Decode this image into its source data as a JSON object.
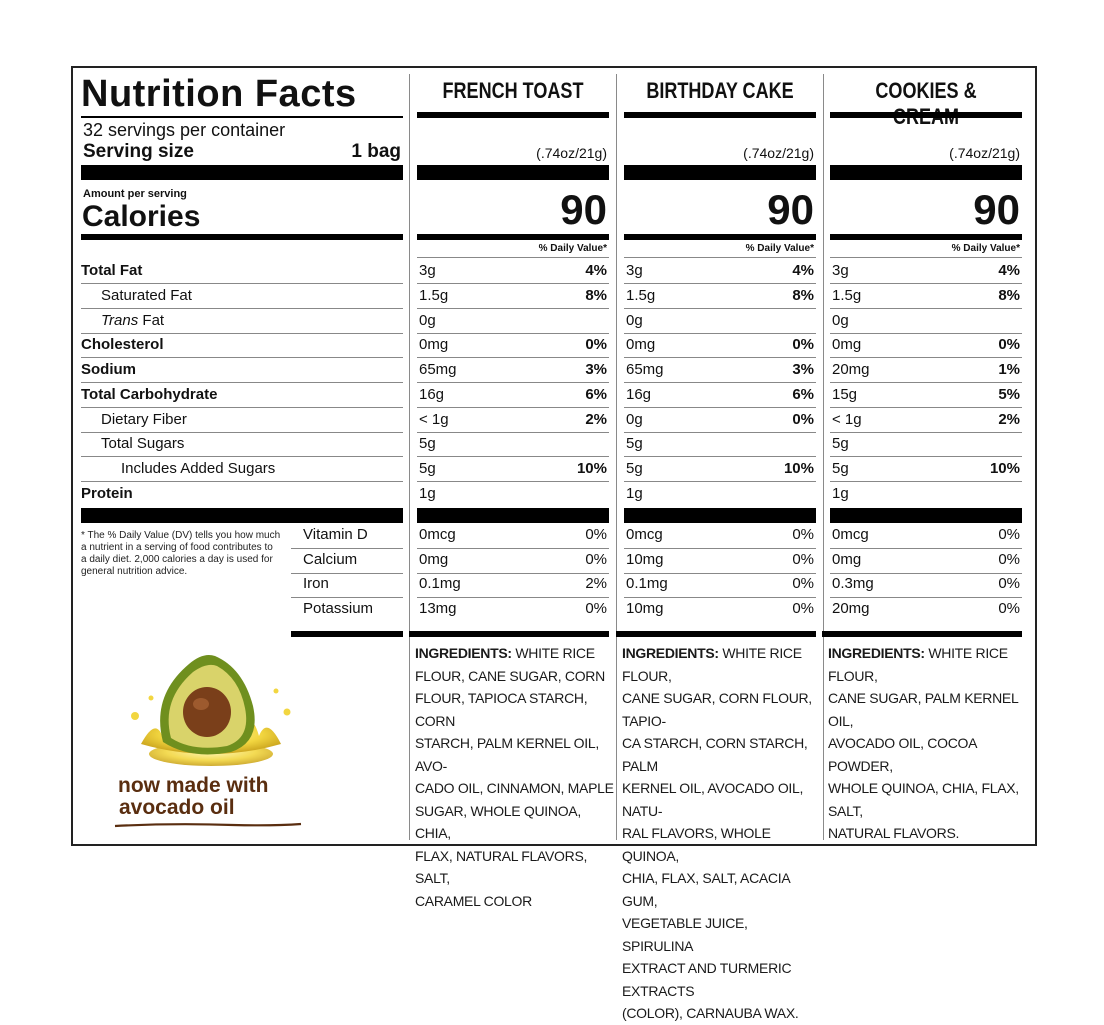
{
  "panel": {
    "title": "Nutrition Facts",
    "servings_per_container": "32 servings per container",
    "serving_size_label": "Serving size",
    "serving_size_value": "1 bag",
    "amount_per_serving": "Amount per serving",
    "calories_label": "Calories",
    "daily_value_header": "% Daily Value*",
    "nutrients": [
      {
        "label": "Total Fat",
        "bold": true
      },
      {
        "label": "Saturated Fat",
        "bold": false
      },
      {
        "label": "Trans",
        "suffix": " Fat",
        "bold": false
      },
      {
        "label": "Cholesterol",
        "bold": true
      },
      {
        "label": "Sodium",
        "bold": true
      },
      {
        "label": "Total Carbohydrate",
        "bold": true
      },
      {
        "label": "Dietary Fiber",
        "bold": false
      },
      {
        "label": "Total Sugars",
        "bold": false
      },
      {
        "label": "Includes Added Sugars",
        "bold": false
      },
      {
        "label": "Protein",
        "bold": true
      }
    ],
    "vitamins": [
      "Vitamin D",
      "Calcium",
      "Iron",
      "Potassium"
    ],
    "footnote": "* The % Daily Value (DV) tells you how much a nutrient in a serving of food contributes to a daily diet. 2,000 calories a day is used for general nutrition advice.",
    "tagline_line1": "now made with",
    "tagline_line2": "avocado oil"
  },
  "flavors": [
    {
      "name": "FRENCH TOAST",
      "serving_weight": "(.74oz/21g)",
      "calories": "90",
      "nutrients": [
        {
          "amount": "3g",
          "dv": "4%"
        },
        {
          "amount": "1.5g",
          "dv": "8%"
        },
        {
          "amount": "0g",
          "dv": ""
        },
        {
          "amount": "0mg",
          "dv": "0%"
        },
        {
          "amount": "65mg",
          "dv": "3%"
        },
        {
          "amount": "16g",
          "dv": "6%"
        },
        {
          "amount": "< 1g",
          "dv": "2%"
        },
        {
          "amount": "5g",
          "dv": ""
        },
        {
          "amount": "5g",
          "dv": "10%"
        },
        {
          "amount": "1g",
          "dv": ""
        }
      ],
      "vitamins": [
        {
          "amount": "0mcg",
          "dv": "0%"
        },
        {
          "amount": "0mg",
          "dv": "0%"
        },
        {
          "amount": "0.1mg",
          "dv": "2%"
        },
        {
          "amount": "13mg",
          "dv": "0%"
        }
      ],
      "ingredients_label": "INGREDIENTS:",
      "ingredients_lines": [
        " WHITE RICE",
        "FLOUR, CANE SUGAR, CORN",
        "FLOUR, TAPIOCA STARCH, CORN",
        "STARCH, PALM KERNEL OIL, AVO-",
        "CADO OIL, CINNAMON, MAPLE",
        "SUGAR, WHOLE QUINOA, CHIA,",
        "FLAX, NATURAL FLAVORS, SALT,",
        "CARAMEL COLOR"
      ]
    },
    {
      "name": "BIRTHDAY CAKE",
      "serving_weight": "(.74oz/21g)",
      "calories": "90",
      "nutrients": [
        {
          "amount": "3g",
          "dv": "4%"
        },
        {
          "amount": "1.5g",
          "dv": "8%"
        },
        {
          "amount": "0g",
          "dv": ""
        },
        {
          "amount": "0mg",
          "dv": "0%"
        },
        {
          "amount": "65mg",
          "dv": "3%"
        },
        {
          "amount": "16g",
          "dv": "6%"
        },
        {
          "amount": "0g",
          "dv": "0%"
        },
        {
          "amount": "5g",
          "dv": ""
        },
        {
          "amount": "5g",
          "dv": "10%"
        },
        {
          "amount": "1g",
          "dv": ""
        }
      ],
      "vitamins": [
        {
          "amount": "0mcg",
          "dv": "0%"
        },
        {
          "amount": "10mg",
          "dv": "0%"
        },
        {
          "amount": "0.1mg",
          "dv": "0%"
        },
        {
          "amount": "10mg",
          "dv": "0%"
        }
      ],
      "ingredients_label": "INGREDIENTS:",
      "ingredients_lines": [
        " WHITE RICE FLOUR,",
        "CANE SUGAR, CORN FLOUR, TAPIO-",
        "CA STARCH, CORN STARCH, PALM",
        "KERNEL OIL, AVOCADO OIL, NATU-",
        "RAL FLAVORS, WHOLE QUINOA,",
        "CHIA, FLAX, SALT, ACACIA GUM,",
        "VEGETABLE JUICE, SPIRULINA",
        "EXTRACT AND TURMERIC EXTRACTS",
        "(COLOR), CARNAUBA WAX."
      ]
    },
    {
      "name": "COOKIES & CREAM",
      "serving_weight": "(.74oz/21g)",
      "calories": "90",
      "nutrients": [
        {
          "amount": "3g",
          "dv": "4%"
        },
        {
          "amount": "1.5g",
          "dv": "8%"
        },
        {
          "amount": "0g",
          "dv": ""
        },
        {
          "amount": "0mg",
          "dv": "0%"
        },
        {
          "amount": "20mg",
          "dv": "1%"
        },
        {
          "amount": "15g",
          "dv": "5%"
        },
        {
          "amount": "< 1g",
          "dv": "2%"
        },
        {
          "amount": "5g",
          "dv": ""
        },
        {
          "amount": "5g",
          "dv": "10%"
        },
        {
          "amount": "1g",
          "dv": ""
        }
      ],
      "vitamins": [
        {
          "amount": "0mcg",
          "dv": "0%"
        },
        {
          "amount": "0mg",
          "dv": "0%"
        },
        {
          "amount": "0.3mg",
          "dv": "0%"
        },
        {
          "amount": "20mg",
          "dv": "0%"
        }
      ],
      "ingredients_label": "INGREDIENTS:",
      "ingredients_lines": [
        " WHITE RICE FLOUR,",
        "CANE SUGAR, PALM KERNEL OIL,",
        "AVOCADO OIL, COCOA POWDER,",
        "WHOLE QUINOA, CHIA, FLAX, SALT,",
        "NATURAL FLAVORS."
      ]
    }
  ],
  "colors": {
    "ink": "#111111",
    "rule": "#888888",
    "tagline": "#5a2e10",
    "avocado_skin": "#6f8f1e",
    "avocado_flesh": "#d9d36a",
    "pit": "#7a3f1a",
    "oil": "#f2d640"
  }
}
